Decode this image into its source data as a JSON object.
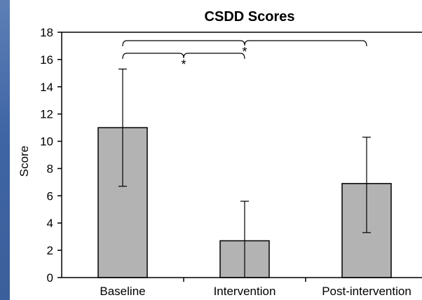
{
  "chart_data": {
    "type": "bar",
    "title": "CSDD Scores",
    "xlabel": "",
    "ylabel": "Score",
    "categories": [
      "Baseline",
      "Intervention",
      "Post-intervention"
    ],
    "values": [
      11.0,
      2.7,
      6.9
    ],
    "error_high": [
      15.3,
      5.6,
      10.3
    ],
    "error_low": [
      6.7,
      0.0,
      3.3
    ],
    "ylim": [
      0,
      18
    ],
    "yticks": [
      "0",
      "2",
      "4",
      "6",
      "8",
      "10",
      "12",
      "14",
      "16",
      "18"
    ],
    "grid": false,
    "legend": "none",
    "bar_color": "#b3b3b3",
    "bar_edge_color": "#000000",
    "significance": [
      {
        "from": "Baseline",
        "to": "Intervention",
        "mark": "*"
      },
      {
        "from": "Baseline",
        "to": "Post-intervention",
        "mark": "*"
      }
    ]
  }
}
